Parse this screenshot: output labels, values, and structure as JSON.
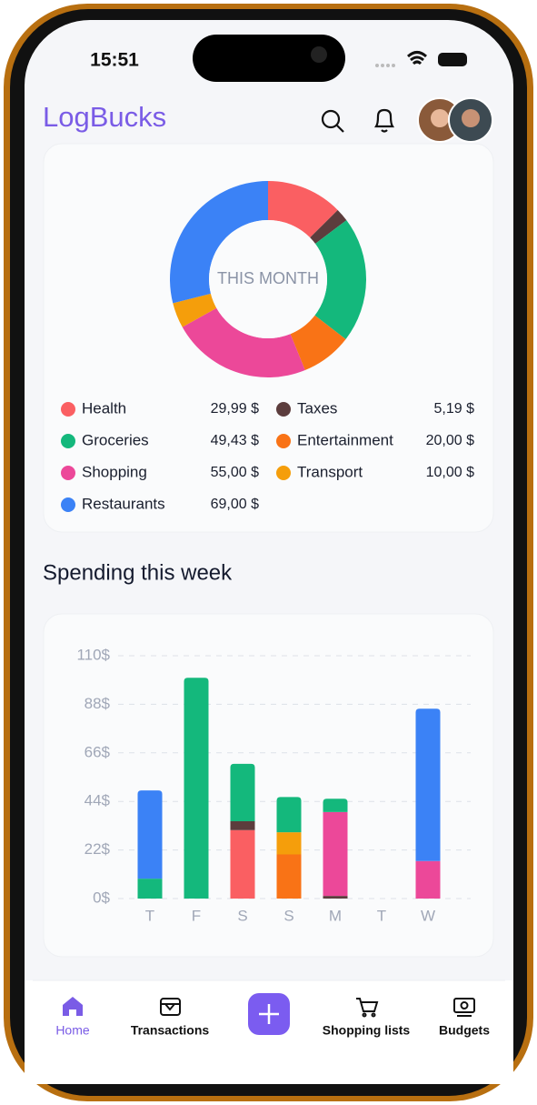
{
  "status": {
    "time": "15:51"
  },
  "header": {
    "logo": "LogBucks"
  },
  "chart_data": [
    {
      "type": "donut",
      "center_label": "THIS MONTH",
      "categories": [
        "Health",
        "Taxes",
        "Groceries",
        "Entertainment",
        "Shopping",
        "Transport",
        "Restaurants"
      ],
      "values": [
        29.99,
        5.19,
        49.43,
        20,
        55,
        10,
        69
      ],
      "value_labels": [
        "29,99 $",
        "5,19 $",
        "49,43 $",
        "20,00 $",
        "55,00 $",
        "10,00 $",
        "69,00 $"
      ],
      "colors": [
        "#fa5f62",
        "#5c3d3d",
        "#14b87c",
        "#f97316",
        "#ec4899",
        "#f59e0b",
        "#3b82f6"
      ]
    },
    {
      "type": "bar",
      "stacked": true,
      "title": "Spending this week",
      "categories": [
        "T",
        "F",
        "S",
        "S",
        "M",
        "T",
        "W"
      ],
      "series": [
        {
          "color": "#fa5f62",
          "values": [
            null,
            null,
            31,
            null,
            null,
            null,
            null
          ]
        },
        {
          "color": "#5c3d3d",
          "values": [
            null,
            null,
            4,
            null,
            1.2,
            null,
            null
          ]
        },
        {
          "color": "#f97316",
          "values": [
            null,
            null,
            null,
            20,
            null,
            null,
            null
          ]
        },
        {
          "color": "#f59e0b",
          "values": [
            null,
            null,
            null,
            10,
            null,
            null,
            null
          ]
        },
        {
          "color": "#ec4899",
          "values": [
            null,
            null,
            null,
            null,
            38,
            null,
            17
          ]
        },
        {
          "color": "#14b87c",
          "values": [
            9,
            100,
            26,
            16,
            6,
            null,
            null
          ]
        },
        {
          "color": "#3b82f6",
          "values": [
            40,
            null,
            null,
            null,
            null,
            null,
            69
          ]
        }
      ],
      "ylim": [
        0,
        110
      ],
      "yticks": [
        {
          "value": 0,
          "label": "0$"
        },
        {
          "value": 22,
          "label": "22$"
        },
        {
          "value": 44,
          "label": "44$"
        },
        {
          "value": 66,
          "label": "66$"
        },
        {
          "value": 88,
          "label": "88$"
        },
        {
          "value": 110,
          "label": "110$"
        }
      ],
      "grid": true
    }
  ],
  "nav": [
    "Home",
    "Transactions",
    "Shopping lists",
    "Budgets"
  ]
}
